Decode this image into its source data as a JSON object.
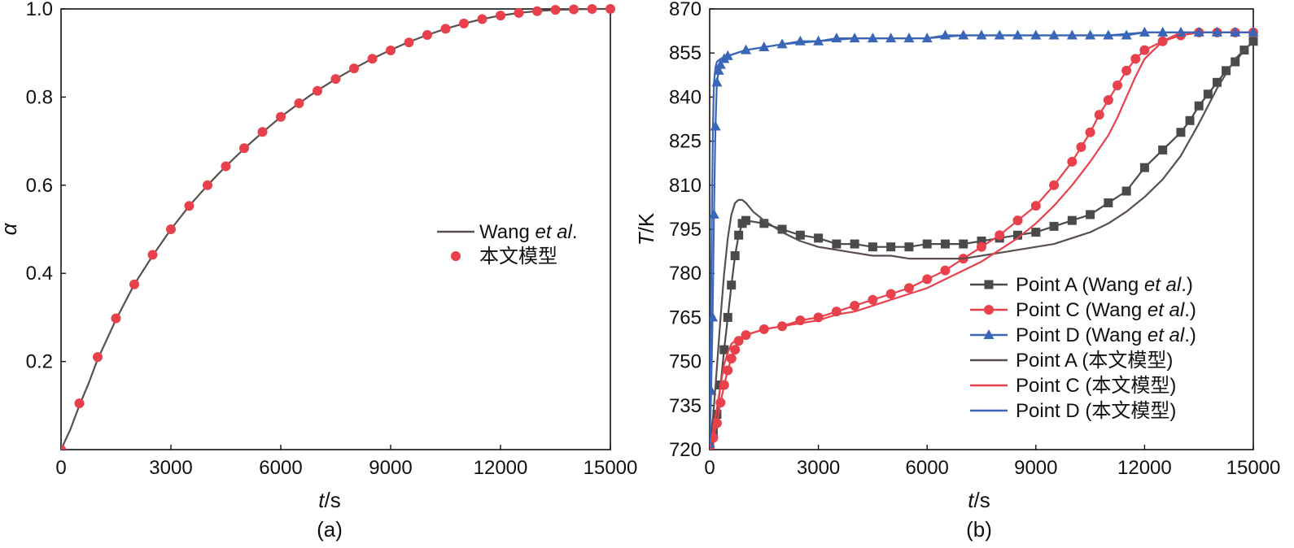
{
  "charts": [
    {
      "id": "a",
      "caption": "(a)",
      "xlabel_italic": "t",
      "xlabel_rest": "/s",
      "ylabel_italic": "α",
      "ylabel_rest": "",
      "xlim": [
        0,
        15000
      ],
      "ylim": [
        0,
        1.0
      ],
      "xticks": [
        0,
        3000,
        6000,
        9000,
        12000,
        15000
      ],
      "xtick_labels": [
        "0",
        "3000",
        "6000",
        "9000",
        "12000",
        "15000"
      ],
      "yticks": [
        0.2,
        0.4,
        0.6,
        0.8,
        1.0
      ],
      "ytick_labels": [
        "0.2",
        "0.4",
        "0.6",
        "0.8",
        "1.0"
      ],
      "legend": [
        {
          "name_plain": "Wang ",
          "name_italic": "et al",
          "name_tail": ".",
          "style": "line",
          "color": "#5a4e4e"
        },
        {
          "name_plain": "本文模型",
          "name_italic": "",
          "name_tail": "",
          "style": "dot",
          "color": "#e8414b"
        }
      ]
    },
    {
      "id": "b",
      "caption": "(b)",
      "xlabel_italic": "t",
      "xlabel_rest": "/s",
      "ylabel_italic": "T",
      "ylabel_rest": "/K",
      "xlim": [
        0,
        15000
      ],
      "ylim": [
        720,
        870
      ],
      "xticks": [
        0,
        3000,
        6000,
        9000,
        12000,
        15000
      ],
      "xtick_labels": [
        "0",
        "3000",
        "6000",
        "9000",
        "12000",
        "15000"
      ],
      "yticks": [
        720,
        735,
        750,
        765,
        780,
        795,
        810,
        825,
        840,
        855,
        870
      ],
      "ytick_labels": [
        "720",
        "735",
        "750",
        "765",
        "780",
        "795",
        "810",
        "825",
        "840",
        "855",
        "870"
      ],
      "legend": [
        {
          "name_plain": "Point A (Wang ",
          "name_italic": "et al",
          "name_tail": ".)",
          "style": "line-square",
          "color": "#4a4a4a"
        },
        {
          "name_plain": "Point C (Wang ",
          "name_italic": "et al",
          "name_tail": ".)",
          "style": "line-circle",
          "color": "#e8414b"
        },
        {
          "name_plain": "Point D (Wang ",
          "name_italic": "et al",
          "name_tail": ".)",
          "style": "line-triangle",
          "color": "#3a66b8"
        },
        {
          "name_plain": "Point A (本文模型)",
          "name_italic": "",
          "name_tail": "",
          "style": "line",
          "color": "#5a4e4e"
        },
        {
          "name_plain": "Point C (本文模型)",
          "name_italic": "",
          "name_tail": "",
          "style": "line",
          "color": "#e8414b"
        },
        {
          "name_plain": "Point D (本文模型)",
          "name_italic": "",
          "name_tail": "",
          "style": "line",
          "color": "#3a66b8"
        }
      ]
    }
  ],
  "chart_data": [
    {
      "type": "line",
      "title": "",
      "xlabel": "t/s",
      "ylabel": "α",
      "xlim": [
        0,
        15000
      ],
      "ylim": [
        0,
        1.0
      ],
      "grid": false,
      "legend_position": "center-right",
      "series": [
        {
          "name": "Wang et al.",
          "style": "line",
          "color": "#5a4e4e",
          "x": [
            0,
            250,
            500,
            750,
            1000,
            1500,
            2000,
            2500,
            3000,
            3500,
            4000,
            4500,
            5000,
            5500,
            6000,
            6500,
            7000,
            7500,
            8000,
            8500,
            9000,
            9500,
            10000,
            10500,
            11000,
            11500,
            12000,
            12500,
            13000,
            13500,
            14000,
            14500,
            15000
          ],
          "y": [
            0.0,
            0.045,
            0.1,
            0.15,
            0.205,
            0.295,
            0.375,
            0.44,
            0.5,
            0.553,
            0.6,
            0.643,
            0.683,
            0.72,
            0.755,
            0.786,
            0.815,
            0.841,
            0.865,
            0.887,
            0.907,
            0.925,
            0.941,
            0.955,
            0.967,
            0.977,
            0.985,
            0.991,
            0.995,
            0.998,
            0.999,
            1.0,
            1.0
          ]
        },
        {
          "name": "本文模型",
          "style": "dot",
          "color": "#e8414b",
          "x": [
            0,
            500,
            1000,
            1500,
            2000,
            2500,
            3000,
            3500,
            4000,
            4500,
            5000,
            5500,
            6000,
            6500,
            7000,
            7500,
            8000,
            8500,
            9000,
            9500,
            10000,
            10500,
            11000,
            11500,
            12000,
            12500,
            13000,
            13500,
            14000,
            14500,
            15000
          ],
          "y": [
            0.0,
            0.105,
            0.21,
            0.298,
            0.375,
            0.442,
            0.5,
            0.553,
            0.6,
            0.643,
            0.684,
            0.721,
            0.755,
            0.786,
            0.814,
            0.841,
            0.865,
            0.887,
            0.906,
            0.924,
            0.941,
            0.955,
            0.967,
            0.977,
            0.985,
            0.991,
            0.995,
            0.998,
            0.999,
            1.0,
            1.0
          ]
        }
      ]
    },
    {
      "type": "line",
      "title": "",
      "xlabel": "T/s",
      "ylabel": "T/K",
      "xlim": [
        0,
        15000
      ],
      "ylim": [
        720,
        870
      ],
      "grid": false,
      "legend_position": "bottom-right",
      "series": [
        {
          "name": "Point A (Wang et al.)",
          "style": "line-square",
          "color": "#4a4a4a",
          "x": [
            0,
            100,
            200,
            300,
            400,
            500,
            600,
            700,
            800,
            900,
            1000,
            1500,
            2000,
            2500,
            3000,
            3500,
            4000,
            4500,
            5000,
            5500,
            6000,
            6500,
            7000,
            7500,
            8000,
            8500,
            9000,
            9500,
            10000,
            10500,
            11000,
            11500,
            12000,
            12500,
            13000,
            13250,
            13500,
            13750,
            14000,
            14250,
            14500,
            14750,
            15000
          ],
          "y": [
            722,
            726,
            732,
            742,
            754,
            765,
            776,
            786,
            793,
            797,
            798,
            797,
            795,
            793,
            792,
            790,
            790,
            789,
            789,
            789,
            790,
            790,
            790,
            791,
            792,
            793,
            794,
            796,
            798,
            800,
            804,
            808,
            816,
            822,
            828,
            832,
            837,
            841,
            845,
            849,
            852,
            856,
            859
          ]
        },
        {
          "name": "Point C (Wang et al.)",
          "style": "line-circle",
          "color": "#e8414b",
          "x": [
            0,
            100,
            200,
            300,
            400,
            500,
            600,
            700,
            800,
            1000,
            1500,
            2000,
            2500,
            3000,
            3500,
            4000,
            4500,
            5000,
            5500,
            6000,
            6500,
            7000,
            7500,
            8000,
            8500,
            9000,
            9500,
            10000,
            10250,
            10500,
            10750,
            11000,
            11250,
            11500,
            11750,
            12000,
            12500,
            13000,
            13500,
            14000,
            14500,
            15000
          ],
          "y": [
            721,
            724,
            729,
            736,
            742,
            747,
            751,
            754,
            757,
            759,
            761,
            762,
            764,
            765,
            767,
            769,
            771,
            773,
            775,
            778,
            781,
            785,
            789,
            793,
            798,
            803,
            810,
            818,
            823,
            828,
            834,
            839,
            844,
            849,
            853,
            856,
            859,
            861,
            862,
            862,
            862,
            862
          ]
        },
        {
          "name": "Point D (Wang et al.)",
          "style": "line-triangle",
          "color": "#3a66b8",
          "x": [
            0,
            40,
            80,
            120,
            160,
            200,
            250,
            300,
            400,
            500,
            1000,
            1500,
            2000,
            2500,
            3000,
            3500,
            4000,
            4500,
            5000,
            5500,
            6000,
            6500,
            7000,
            7500,
            8000,
            8500,
            9000,
            9500,
            10000,
            10500,
            11000,
            11500,
            12000,
            12500,
            13000,
            13500,
            14000,
            14500,
            15000
          ],
          "y": [
            722,
            740,
            765,
            800,
            830,
            845,
            849,
            851,
            853,
            854,
            856,
            857,
            858,
            859,
            859,
            860,
            860,
            860,
            860,
            860,
            860,
            861,
            861,
            861,
            861,
            861,
            861,
            861,
            861,
            861,
            861,
            861,
            862,
            862,
            862,
            862,
            862,
            862,
            862
          ]
        },
        {
          "name": "Point A (本文模型)",
          "style": "line",
          "color": "#5a4e4e",
          "x": [
            0,
            100,
            200,
            300,
            400,
            500,
            600,
            700,
            800,
            900,
            1000,
            1200,
            1500,
            2000,
            2500,
            3000,
            3500,
            4000,
            4500,
            5000,
            5500,
            6000,
            6500,
            7000,
            7500,
            8000,
            8500,
            9000,
            9500,
            10000,
            10500,
            11000,
            11500,
            12000,
            12500,
            13000,
            13500,
            14000,
            14500,
            15000
          ],
          "y": [
            722,
            732,
            748,
            765,
            780,
            792,
            800,
            804,
            805,
            805,
            804,
            801,
            798,
            794,
            791,
            789,
            788,
            787,
            786,
            786,
            785,
            785,
            785,
            785,
            786,
            787,
            788,
            789,
            790,
            792,
            794,
            797,
            801,
            806,
            812,
            820,
            831,
            843,
            853,
            859
          ]
        },
        {
          "name": "Point C (本文模型)",
          "style": "line",
          "color": "#e8414b",
          "x": [
            0,
            100,
            200,
            300,
            400,
            500,
            600,
            800,
            1000,
            1500,
            2000,
            2500,
            3000,
            3500,
            4000,
            4500,
            5000,
            5500,
            6000,
            6500,
            7000,
            7500,
            8000,
            8500,
            9000,
            9500,
            10000,
            10500,
            11000,
            11250,
            11500,
            11750,
            12000,
            12500,
            13000,
            13500,
            14000,
            14500,
            15000
          ],
          "y": [
            721,
            727,
            734,
            742,
            749,
            753,
            756,
            758,
            759,
            761,
            762,
            763,
            764,
            766,
            767,
            769,
            771,
            773,
            775,
            778,
            781,
            784,
            788,
            792,
            797,
            803,
            810,
            818,
            827,
            833,
            840,
            847,
            853,
            859,
            862,
            862,
            862,
            862,
            862
          ]
        },
        {
          "name": "Point D (本文模型)",
          "style": "line",
          "color": "#3a66b8",
          "x": [
            0,
            30,
            60,
            90,
            120,
            160,
            200,
            300,
            500,
            1000,
            2000,
            3000,
            4000,
            5000,
            6000,
            7000,
            8000,
            9000,
            10000,
            11000,
            12000,
            13000,
            14000,
            15000
          ],
          "y": [
            722,
            760,
            800,
            830,
            845,
            850,
            852,
            853,
            854,
            856,
            858,
            859,
            860,
            860,
            860,
            861,
            861,
            861,
            861,
            861,
            862,
            862,
            862,
            862
          ]
        }
      ]
    }
  ]
}
